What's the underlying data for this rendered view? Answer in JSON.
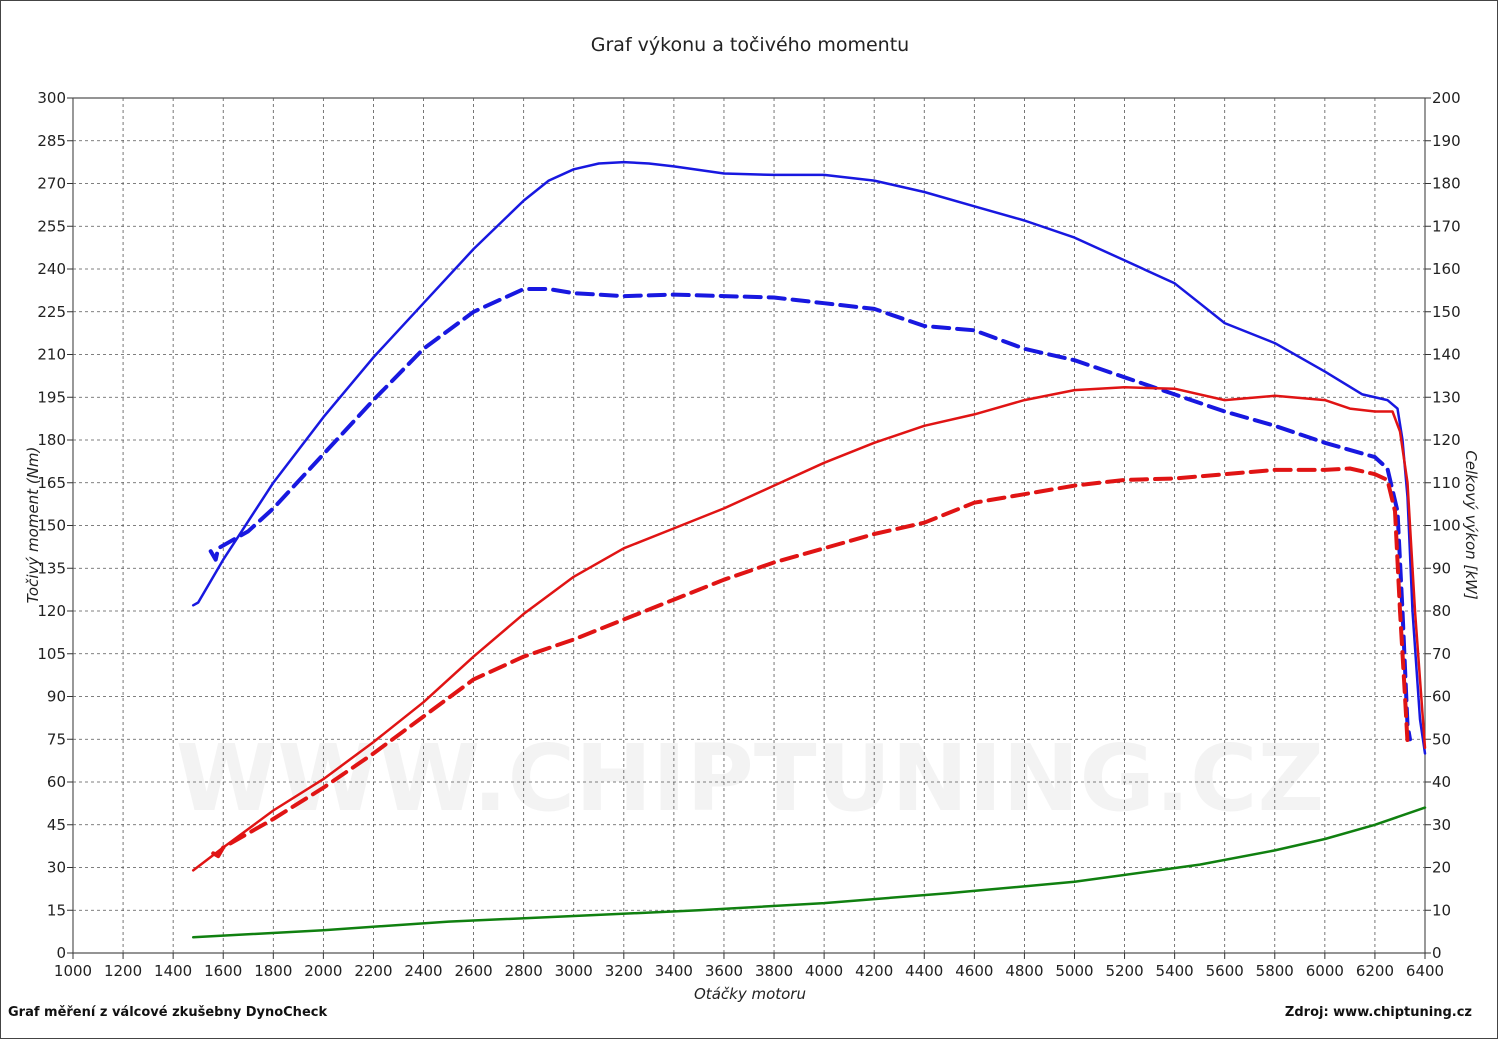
{
  "header": {
    "title": "Graf výkonu a točivého momentu"
  },
  "footer": {
    "left": "Graf měření z válcové zkušebny DynoCheck",
    "right": "Zdroj: www.chiptuning.cz"
  },
  "watermark": {
    "text": "WWW.CHIPTUNING.CZ"
  },
  "colors": {
    "power": "#1818e0",
    "torque": "#e01414",
    "loss": "#108010",
    "grid": "#555555"
  },
  "chart_data": {
    "type": "line",
    "title": "Graf výkonu a točivého momentu",
    "xlabel": "Otáčky motoru",
    "ylabel_left": "Točivý moment (Nm)",
    "ylabel_right": "Celkový výkon [kW]",
    "xlim": [
      1000,
      6400
    ],
    "ylim_left": [
      0,
      300
    ],
    "ylim_right": [
      0,
      200
    ],
    "x_ticks": [
      1000,
      1200,
      1400,
      1600,
      1800,
      2000,
      2200,
      2400,
      2600,
      2800,
      3000,
      3200,
      3400,
      3600,
      3800,
      4000,
      4200,
      4400,
      4600,
      4800,
      5000,
      5200,
      5400,
      5600,
      5800,
      6000,
      6200,
      6400
    ],
    "y_ticks_left": [
      0,
      15,
      30,
      45,
      60,
      75,
      90,
      105,
      120,
      135,
      150,
      165,
      180,
      195,
      210,
      225,
      240,
      255,
      270,
      285,
      300
    ],
    "y_ticks_right": [
      0,
      10,
      20,
      30,
      40,
      50,
      60,
      70,
      80,
      90,
      100,
      110,
      120,
      130,
      140,
      150,
      160,
      170,
      180,
      190,
      200
    ],
    "grid": true,
    "series": [
      {
        "color": "#1818e0",
        "dash": false,
        "axis": "left",
        "points": [
          [
            1480,
            122
          ],
          [
            1500,
            123
          ],
          [
            1600,
            138
          ],
          [
            1800,
            165
          ],
          [
            2000,
            188
          ],
          [
            2200,
            209
          ],
          [
            2400,
            228
          ],
          [
            2600,
            247
          ],
          [
            2800,
            264
          ],
          [
            2900,
            271
          ],
          [
            3000,
            275
          ],
          [
            3100,
            277
          ],
          [
            3200,
            277.5
          ],
          [
            3300,
            277
          ],
          [
            3400,
            276
          ],
          [
            3600,
            273.5
          ],
          [
            3800,
            273
          ],
          [
            4000,
            273
          ],
          [
            4200,
            271
          ],
          [
            4400,
            267
          ],
          [
            4600,
            262
          ],
          [
            4800,
            257
          ],
          [
            5000,
            251
          ],
          [
            5200,
            243
          ],
          [
            5400,
            235
          ],
          [
            5500,
            228
          ],
          [
            5600,
            221
          ],
          [
            5800,
            214
          ],
          [
            6000,
            204
          ],
          [
            6150,
            196
          ],
          [
            6250,
            194
          ],
          [
            6290,
            191
          ],
          [
            6310,
            180
          ],
          [
            6330,
            160
          ],
          [
            6350,
            120
          ],
          [
            6380,
            82
          ],
          [
            6400,
            70
          ]
        ]
      },
      {
        "color": "#1818e0",
        "dash": true,
        "axis": "left",
        "points": [
          [
            1550,
            141
          ],
          [
            1570,
            138
          ],
          [
            1580,
            142
          ],
          [
            1700,
            148
          ],
          [
            1800,
            156
          ],
          [
            2000,
            175
          ],
          [
            2200,
            194
          ],
          [
            2400,
            212
          ],
          [
            2600,
            225
          ],
          [
            2800,
            233
          ],
          [
            2900,
            233
          ],
          [
            3000,
            231.5
          ],
          [
            3200,
            230.5
          ],
          [
            3400,
            231
          ],
          [
            3600,
            230.5
          ],
          [
            3800,
            230
          ],
          [
            4000,
            228
          ],
          [
            4200,
            226
          ],
          [
            4400,
            220
          ],
          [
            4600,
            218.5
          ],
          [
            4800,
            212
          ],
          [
            5000,
            208
          ],
          [
            5200,
            202
          ],
          [
            5400,
            196
          ],
          [
            5600,
            190
          ],
          [
            5800,
            185
          ],
          [
            6000,
            179
          ],
          [
            6200,
            174
          ],
          [
            6250,
            170
          ],
          [
            6290,
            155
          ],
          [
            6310,
            120
          ],
          [
            6330,
            80
          ],
          [
            6340,
            75
          ]
        ]
      },
      {
        "color": "#e01414",
        "dash": false,
        "axis": "left",
        "points": [
          [
            1480,
            29
          ],
          [
            1600,
            37
          ],
          [
            1800,
            50
          ],
          [
            2000,
            61
          ],
          [
            2200,
            74
          ],
          [
            2400,
            88
          ],
          [
            2600,
            104
          ],
          [
            2800,
            119
          ],
          [
            3000,
            132
          ],
          [
            3200,
            142
          ],
          [
            3400,
            149
          ],
          [
            3600,
            156
          ],
          [
            3800,
            164
          ],
          [
            4000,
            172
          ],
          [
            4200,
            179
          ],
          [
            4400,
            185
          ],
          [
            4600,
            189
          ],
          [
            4800,
            194
          ],
          [
            5000,
            197.5
          ],
          [
            5200,
            198.5
          ],
          [
            5400,
            198
          ],
          [
            5600,
            194
          ],
          [
            5800,
            195.5
          ],
          [
            6000,
            194
          ],
          [
            6100,
            191
          ],
          [
            6200,
            190
          ],
          [
            6270,
            190
          ],
          [
            6300,
            183
          ],
          [
            6330,
            165
          ],
          [
            6360,
            120
          ],
          [
            6400,
            72
          ]
        ]
      },
      {
        "color": "#e01414",
        "dash": true,
        "axis": "left",
        "points": [
          [
            1560,
            35
          ],
          [
            1580,
            34
          ],
          [
            1600,
            37
          ],
          [
            1800,
            47
          ],
          [
            2000,
            58
          ],
          [
            2200,
            70
          ],
          [
            2400,
            83
          ],
          [
            2600,
            96
          ],
          [
            2800,
            104
          ],
          [
            3000,
            110
          ],
          [
            3200,
            117
          ],
          [
            3400,
            124
          ],
          [
            3600,
            131
          ],
          [
            3800,
            137
          ],
          [
            4000,
            142
          ],
          [
            4200,
            147
          ],
          [
            4400,
            151
          ],
          [
            4600,
            158
          ],
          [
            4800,
            161
          ],
          [
            5000,
            164
          ],
          [
            5200,
            166
          ],
          [
            5400,
            166.5
          ],
          [
            5600,
            168
          ],
          [
            5800,
            169.5
          ],
          [
            6000,
            169.5
          ],
          [
            6100,
            170
          ],
          [
            6200,
            168
          ],
          [
            6250,
            166
          ],
          [
            6280,
            155
          ],
          [
            6300,
            120
          ],
          [
            6320,
            90
          ],
          [
            6330,
            74
          ]
        ]
      },
      {
        "color": "#108010",
        "dash": false,
        "axis": "left",
        "points": [
          [
            1480,
            5.5
          ],
          [
            2000,
            8
          ],
          [
            2500,
            11
          ],
          [
            3000,
            13
          ],
          [
            3500,
            15
          ],
          [
            4000,
            17.5
          ],
          [
            4500,
            21
          ],
          [
            5000,
            25
          ],
          [
            5500,
            31
          ],
          [
            5800,
            36
          ],
          [
            6000,
            40
          ],
          [
            6200,
            45
          ],
          [
            6400,
            51
          ]
        ]
      }
    ]
  }
}
